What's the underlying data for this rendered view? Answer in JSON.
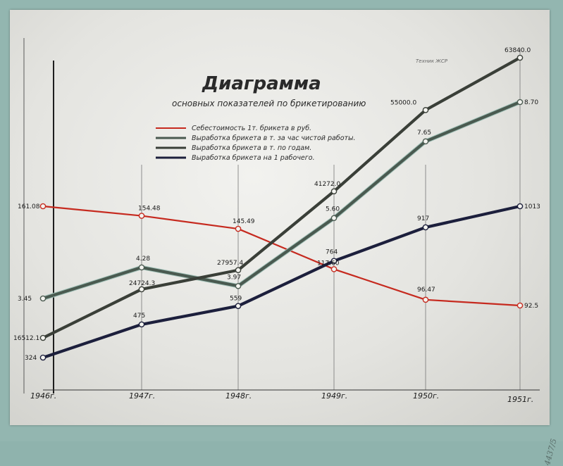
{
  "chart_data": {
    "type": "line",
    "title": "Диаграмма",
    "subtitle": "основных показателей по брикетированию",
    "corner_note": "Техник ЖСР",
    "categories": [
      "1946г.",
      "1947г.",
      "1948г.",
      "1949г.",
      "1950г.",
      "1951г."
    ],
    "grid": "vertical lines at each year",
    "legend_position": "top-left",
    "series": [
      {
        "name": "Себестоимость 1т. брикета в руб.",
        "color": "#c62a1f",
        "values": [
          161.08,
          154.48,
          145.49,
          117.6,
          96.47,
          92.5
        ],
        "labels": [
          "161.08",
          "154.48",
          "145.49",
          "117.60",
          "96.47",
          "92.5"
        ]
      },
      {
        "name": "Выработка брикета в т. за час чистой работы.",
        "color": "#4a5a50",
        "values": [
          3.45,
          4.28,
          3.97,
          5.6,
          7.65,
          8.7
        ],
        "labels": [
          "3.45",
          "4.28",
          "3.97",
          "5.60",
          "7.65",
          "8.70"
        ]
      },
      {
        "name": "Выработка брикета в т. по годам.",
        "color": "#3a3f38",
        "values": [
          16512.1,
          24724.3,
          27957.4,
          41272.0,
          55000.0,
          63840.0
        ],
        "labels": [
          "16512.1",
          "24724.3",
          "27957.4",
          "41272.0",
          "55000.0",
          "63840.0"
        ]
      },
      {
        "name": "Выработка брикета на 1 рабочего.",
        "color": "#1c1f3c",
        "values": [
          324,
          475,
          559,
          764,
          917,
          1013
        ],
        "labels": [
          "324",
          "475",
          "559",
          "764",
          "917",
          "1013"
        ]
      }
    ]
  },
  "mount_note": "4437/5"
}
